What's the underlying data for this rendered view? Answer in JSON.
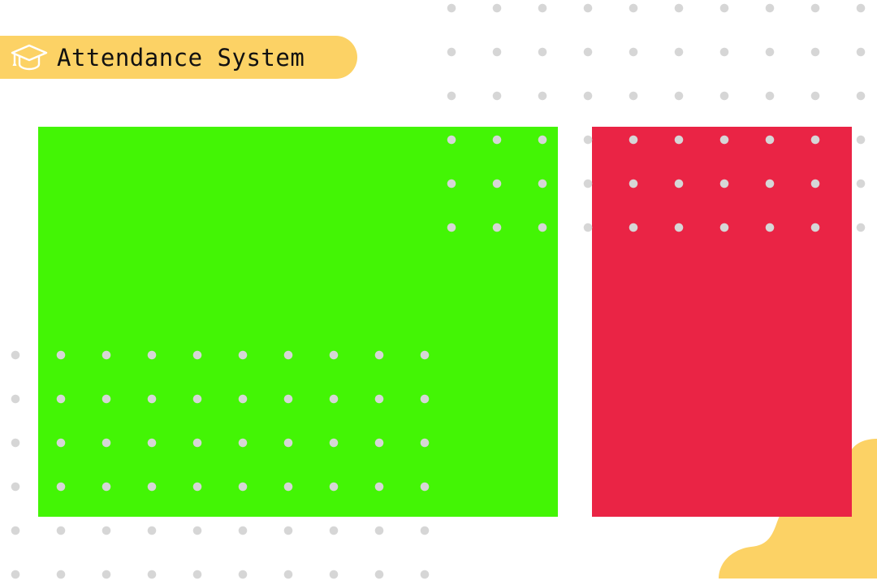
{
  "header": {
    "title": "Attendance System",
    "icon": "graduation-cap-icon"
  },
  "panels": [
    {
      "name": "green-panel",
      "color": "#43f505"
    },
    {
      "name": "red-panel",
      "color": "#ea2445"
    }
  ],
  "colors": {
    "accent": "#fcd265",
    "dots": "#d6d6d6",
    "background": "#ffffff"
  }
}
